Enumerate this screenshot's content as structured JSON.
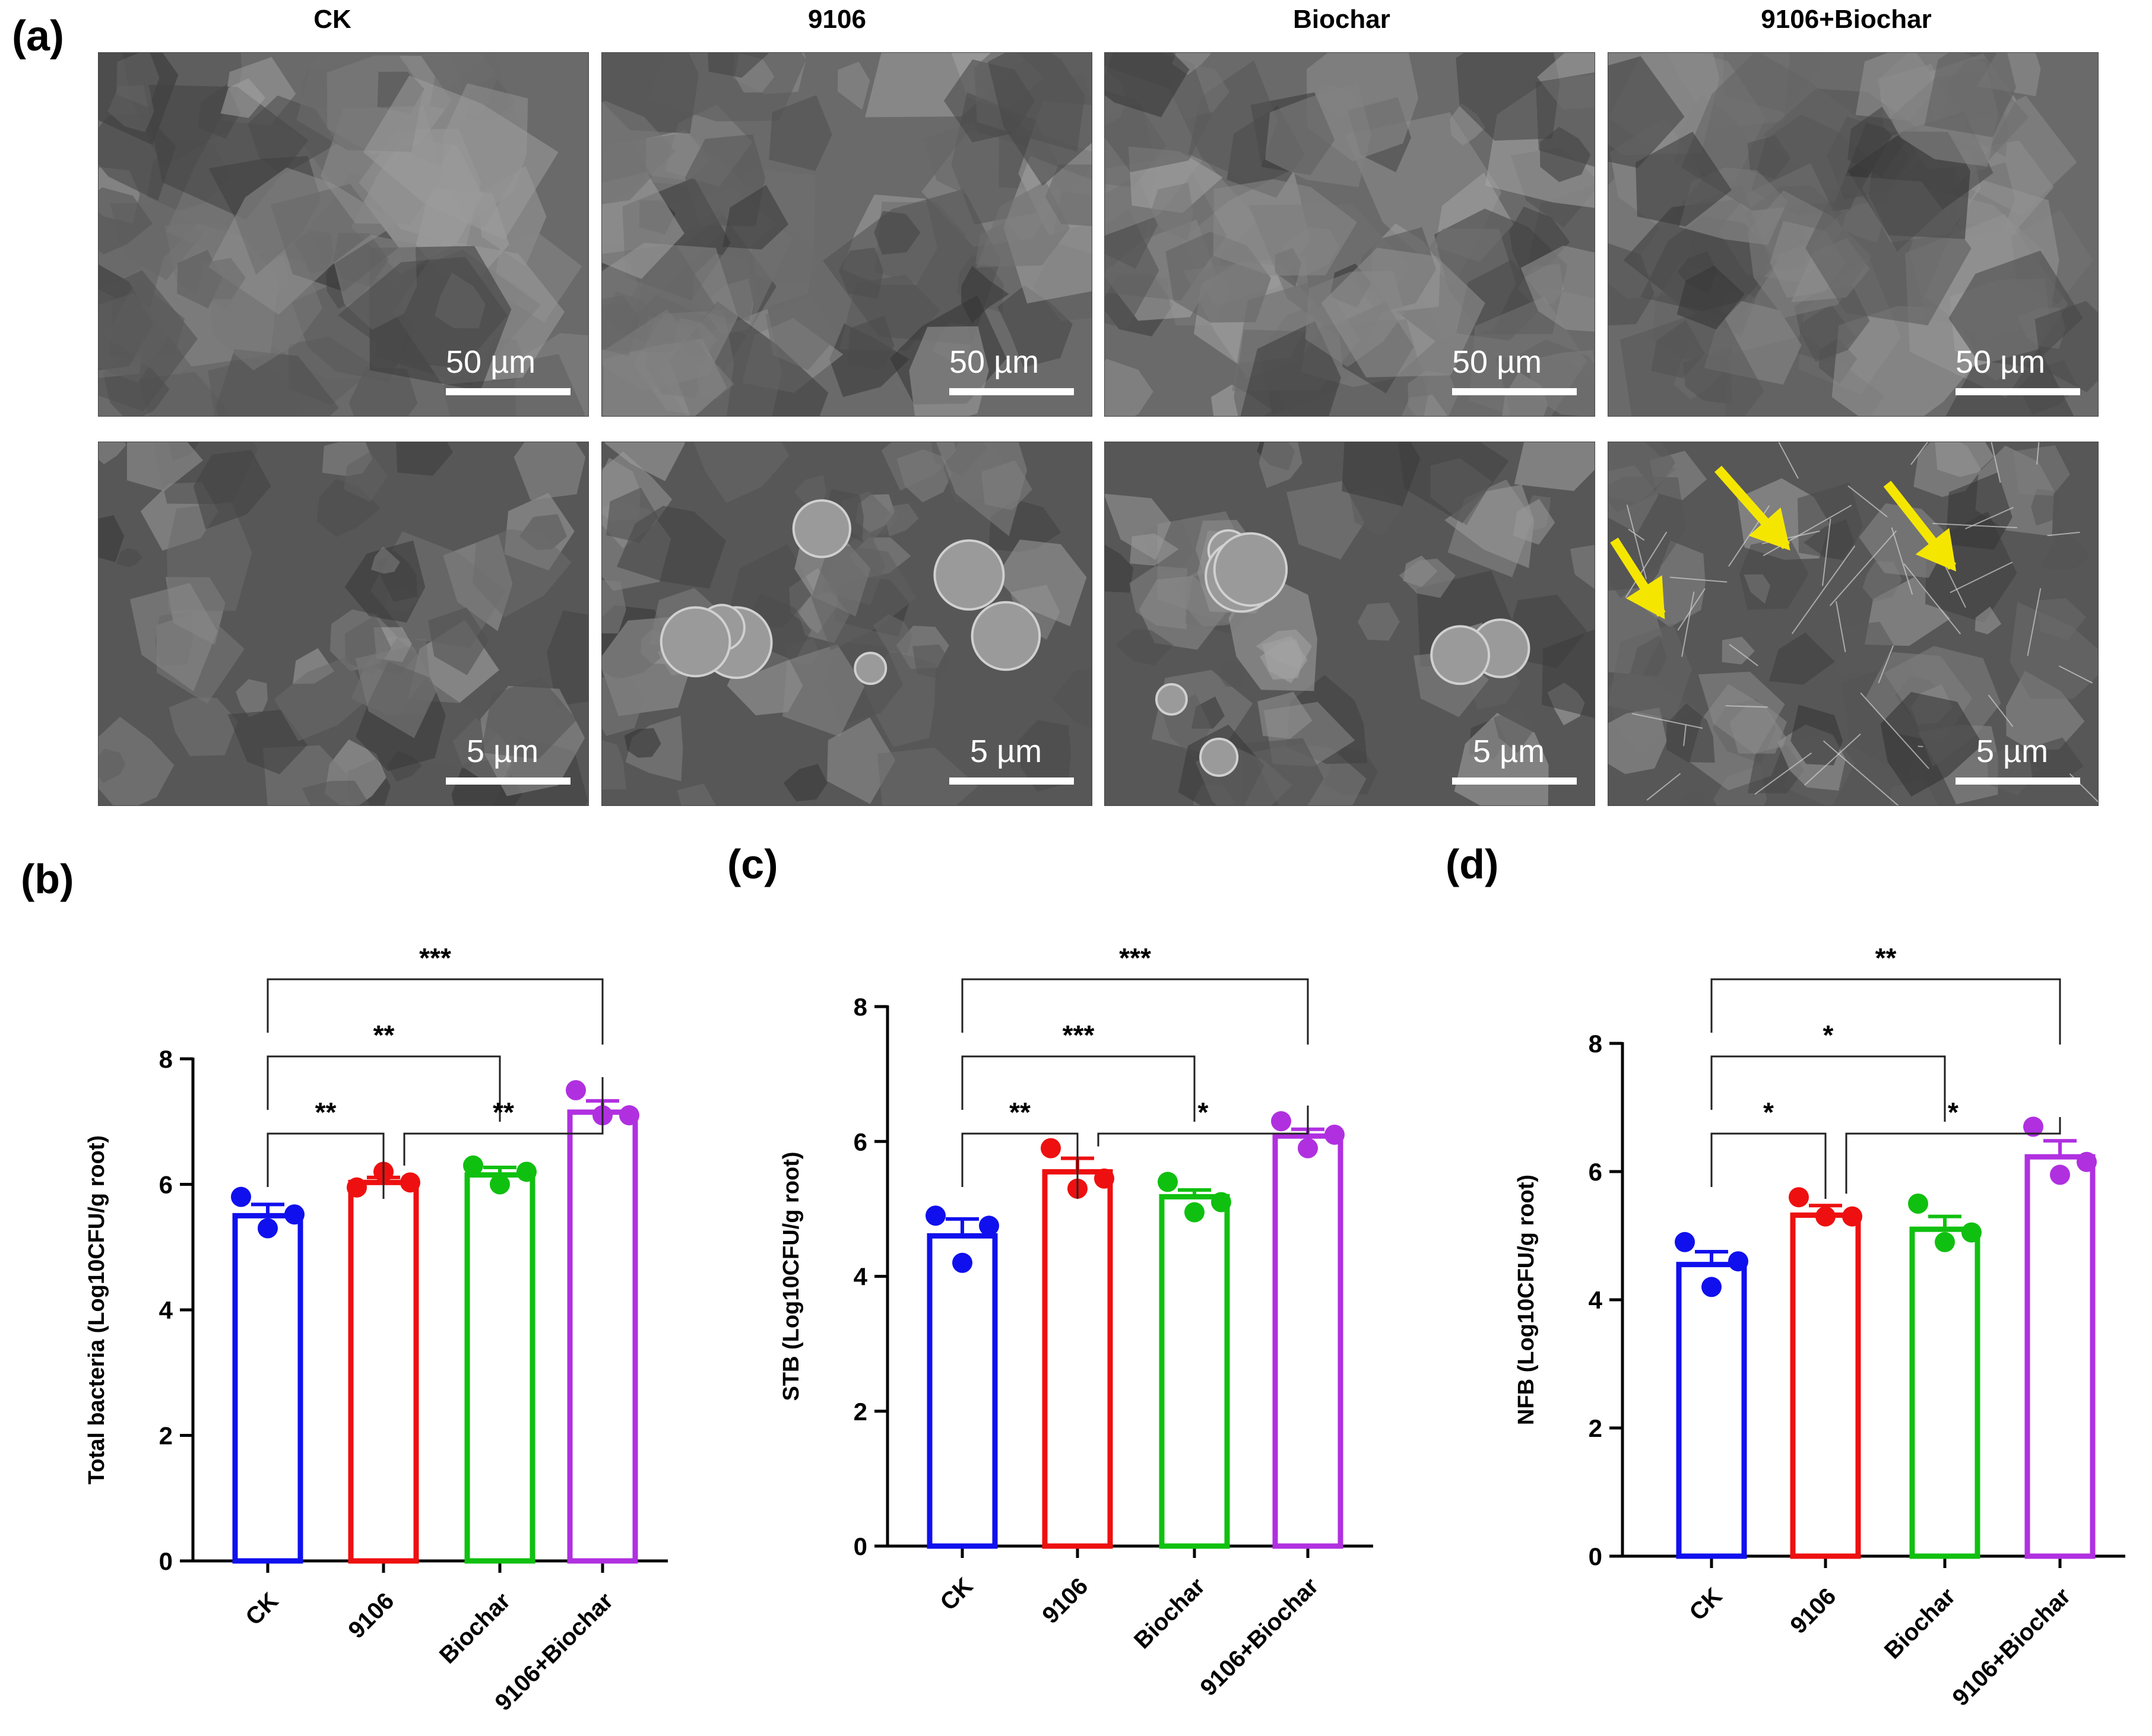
{
  "panel_a": {
    "letter": "(a)",
    "columns": [
      "CK",
      "9106",
      "Biochar",
      "9106+Biochar"
    ],
    "scale_top": "50 µm",
    "scale_bottom": "5 µm"
  },
  "chart_data": [
    {
      "letter": "(b)",
      "type": "bar",
      "categories": [
        "CK",
        "9106",
        "Biochar",
        "9106+Biochar"
      ],
      "values": [
        5.5,
        6.03,
        6.15,
        7.15
      ],
      "errors": [
        0.18,
        0.08,
        0.12,
        0.18
      ],
      "points": [
        [
          5.8,
          5.3,
          5.52
        ],
        [
          5.95,
          6.2,
          6.03
        ],
        [
          6.3,
          6.0,
          6.2
        ],
        [
          7.5,
          7.1,
          7.1
        ]
      ],
      "colors": [
        "#1010ee",
        "#ee1010",
        "#10c010",
        "#b030e0"
      ],
      "ylabel": "Total bacteria (Log10CFU/g root)",
      "ylim": [
        0,
        8
      ],
      "yticks": [
        0,
        2,
        4,
        6,
        8
      ],
      "sig": [
        {
          "from": 0,
          "to": 3,
          "label": "***"
        },
        {
          "from": 0,
          "to": 2,
          "label": "**"
        },
        {
          "from": 0,
          "to": 1,
          "label": "**"
        },
        {
          "from": 1,
          "to": 3,
          "label": "**"
        }
      ]
    },
    {
      "letter": "(c)",
      "type": "bar",
      "categories": [
        "CK",
        "9106",
        "Biochar",
        "9106+Biochar"
      ],
      "values": [
        4.6,
        5.55,
        5.18,
        6.08
      ],
      "errors": [
        0.25,
        0.2,
        0.1,
        0.1
      ],
      "points": [
        [
          4.9,
          4.2,
          4.75
        ],
        [
          5.9,
          5.3,
          5.45
        ],
        [
          5.4,
          4.95,
          5.1
        ],
        [
          6.3,
          5.9,
          6.1
        ]
      ],
      "colors": [
        "#1010ee",
        "#ee1010",
        "#10c010",
        "#b030e0"
      ],
      "ylabel": "STB (Log10CFU/g root)",
      "ylim": [
        0,
        8
      ],
      "yticks": [
        0,
        2,
        4,
        6,
        8
      ],
      "sig": [
        {
          "from": 0,
          "to": 3,
          "label": "***"
        },
        {
          "from": 0,
          "to": 2,
          "label": "***"
        },
        {
          "from": 0,
          "to": 1,
          "label": "**"
        },
        {
          "from": 1,
          "to": 3,
          "label": "*"
        }
      ]
    },
    {
      "letter": "(d)",
      "type": "bar",
      "categories": [
        "CK",
        "9106",
        "Biochar",
        "9106+Biochar"
      ],
      "values": [
        4.55,
        5.32,
        5.1,
        6.23
      ],
      "errors": [
        0.2,
        0.15,
        0.2,
        0.25
      ],
      "points": [
        [
          4.9,
          4.2,
          4.6
        ],
        [
          5.6,
          5.3,
          5.3
        ],
        [
          5.5,
          4.9,
          5.05
        ],
        [
          6.7,
          5.95,
          6.15
        ]
      ],
      "colors": [
        "#1010ee",
        "#ee1010",
        "#10c010",
        "#b030e0"
      ],
      "ylabel": "NFB  (Log10CFU/g root)",
      "ylim": [
        0,
        8
      ],
      "yticks": [
        0,
        2,
        4,
        6,
        8
      ],
      "sig": [
        {
          "from": 0,
          "to": 3,
          "label": "**"
        },
        {
          "from": 0,
          "to": 2,
          "label": "*"
        },
        {
          "from": 0,
          "to": 1,
          "label": "*"
        },
        {
          "from": 1,
          "to": 3,
          "label": "*"
        }
      ]
    }
  ]
}
